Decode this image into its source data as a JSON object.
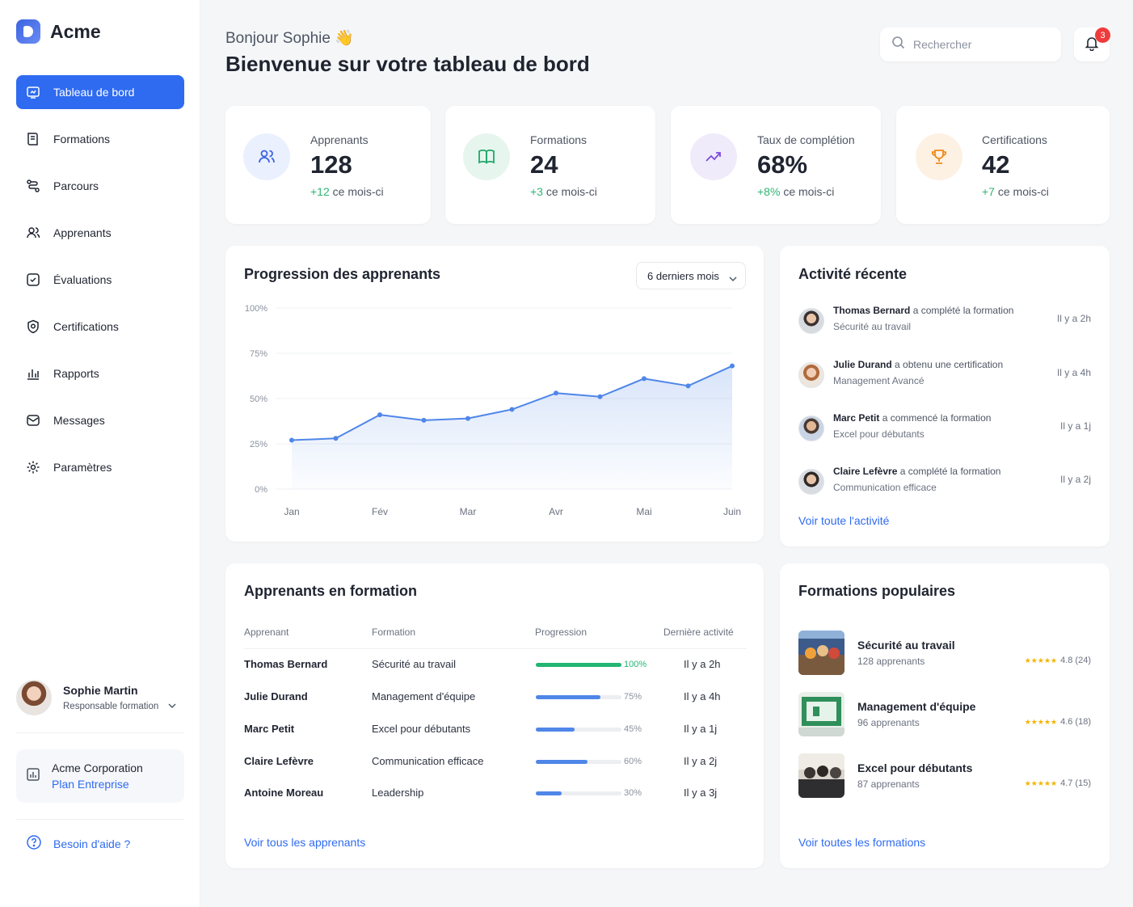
{
  "app": {
    "name": "Acme"
  },
  "sidebar": {
    "items": [
      {
        "label": "Tableau de bord",
        "icon": "dashboard-icon",
        "active": true
      },
      {
        "label": "Formations",
        "icon": "book-icon"
      },
      {
        "label": "Parcours",
        "icon": "route-icon"
      },
      {
        "label": "Apprenants",
        "icon": "users-icon"
      },
      {
        "label": "Évaluations",
        "icon": "evaluation-icon"
      },
      {
        "label": "Certifications",
        "icon": "certificate-icon"
      },
      {
        "label": "Rapports",
        "icon": "reports-icon"
      },
      {
        "label": "Messages",
        "icon": "mail-icon"
      },
      {
        "label": "Paramètres",
        "icon": "gear-icon"
      }
    ],
    "user": {
      "name": "Sophie Martin",
      "role": "Responsable formation"
    },
    "org": {
      "name": "Acme Corporation",
      "plan": "Plan Entreprise"
    },
    "help": "Besoin d'aide ?"
  },
  "header": {
    "greeting": "Bonjour Sophie 👋",
    "title": "Bienvenue sur votre tableau de bord",
    "search_placeholder": "Rechercher",
    "notifications": "3"
  },
  "stats": [
    {
      "label": "Apprenants",
      "value": "128",
      "delta": "+12",
      "period": "ce mois-ci",
      "icon": "users-icon",
      "color": "#3b63e0",
      "bg": "#eaf0fd"
    },
    {
      "label": "Formations",
      "value": "24",
      "delta": "+3",
      "period": "ce mois-ci",
      "icon": "book-icon",
      "color": "#22a66a",
      "bg": "#e6f6ee"
    },
    {
      "label": "Taux de complétion",
      "value": "68%",
      "delta": "+8%",
      "period": "ce mois-ci",
      "icon": "trend-icon",
      "color": "#7c4ddb",
      "bg": "#f0ebfb"
    },
    {
      "label": "Certifications",
      "value": "42",
      "delta": "+7",
      "period": "ce mois-ci",
      "icon": "trophy-icon",
      "color": "#f08a1a",
      "bg": "#fdf1e4"
    }
  ],
  "progression": {
    "title": "Progression des apprenants",
    "range": "6 derniers mois"
  },
  "chart_data": {
    "type": "area",
    "x_ticks": [
      "Jan",
      "Fév",
      "Mar",
      "Avr",
      "Mai",
      "Juin"
    ],
    "y_ticks": [
      "100%",
      "75%",
      "50%",
      "25%",
      "0%"
    ],
    "ylim": [
      0,
      100
    ],
    "x": [
      0,
      0.5,
      1,
      1.5,
      2,
      2.5,
      3,
      3.5,
      4,
      4.5,
      5
    ],
    "values": [
      27,
      28,
      41,
      38,
      39,
      44,
      53,
      51,
      61,
      57,
      68
    ],
    "color": "#4f86e8",
    "grid": true
  },
  "activity": {
    "title": "Activité récente",
    "items": [
      {
        "name": "Thomas Bernard",
        "action": "a complété la formation",
        "detail": "Sécurité au travail",
        "time": "Il y a 2h"
      },
      {
        "name": "Julie Durand",
        "action": "a obtenu une certification",
        "detail": "Management Avancé",
        "time": "Il y a 4h"
      },
      {
        "name": "Marc Petit",
        "action": "a commencé la formation",
        "detail": "Excel pour débutants",
        "time": "Il y a 1j"
      },
      {
        "name": "Claire Lefèvre",
        "action": "a complété la formation",
        "detail": "Communication efficace",
        "time": "Il y a 2j"
      }
    ],
    "link": "Voir toute l'activité"
  },
  "learners": {
    "title": "Apprenants en formation",
    "columns": [
      "Apprenant",
      "Formation",
      "Progression",
      "Dernière activité"
    ],
    "rows": [
      {
        "name": "Thomas Bernard",
        "course": "Sécurité au travail",
        "progress": 100,
        "progress_label": "100%",
        "last": "Il y a 2h"
      },
      {
        "name": "Julie Durand",
        "course": "Management d'équipe",
        "progress": 75,
        "progress_label": "75%",
        "last": "Il y a 4h"
      },
      {
        "name": "Marc Petit",
        "course": "Excel pour débutants",
        "progress": 45,
        "progress_label": "45%",
        "last": "Il y a 1j"
      },
      {
        "name": "Claire Lefèvre",
        "course": "Communication efficace",
        "progress": 60,
        "progress_label": "60%",
        "last": "Il y a 2j"
      },
      {
        "name": "Antoine Moreau",
        "course": "Leadership",
        "progress": 30,
        "progress_label": "30%",
        "last": "Il y a 3j"
      }
    ],
    "link": "Voir tous les apprenants"
  },
  "popular": {
    "title": "Formations populaires",
    "items": [
      {
        "title": "Sécurité au travail",
        "learners": "128 apprenants",
        "rating": "4.8 (24)"
      },
      {
        "title": "Management d'équipe",
        "learners": "96 apprenants",
        "rating": "4.6 (18)"
      },
      {
        "title": "Excel pour débutants",
        "learners": "87 apprenants",
        "rating": "4.7 (15)"
      }
    ],
    "link": "Voir toutes les formations"
  }
}
